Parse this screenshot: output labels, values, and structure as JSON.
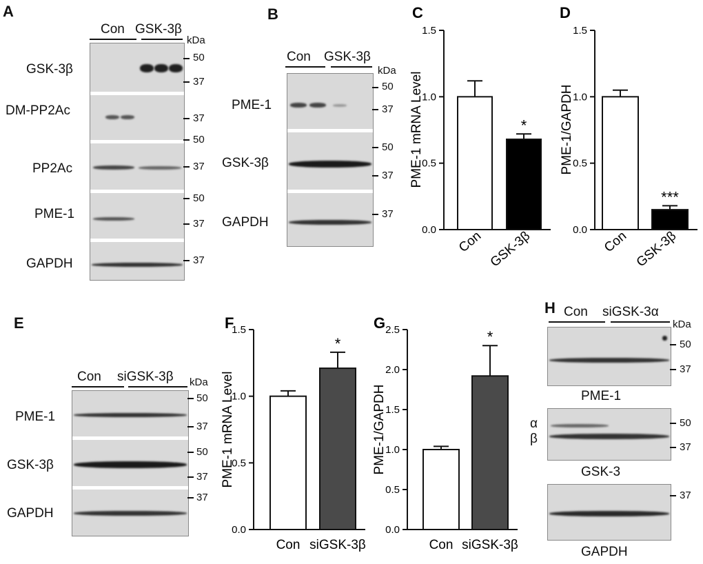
{
  "panels": {
    "A": {
      "letter": "A",
      "groups": [
        "Con",
        "GSK-3β"
      ],
      "unit": "kDa",
      "rows": [
        "GSK-3β",
        "DM-PP2Ac",
        "PP2Ac",
        "PME-1",
        "GAPDH"
      ],
      "markers": [
        "50",
        "37",
        "37",
        "50",
        "37",
        "50",
        "37",
        "37"
      ]
    },
    "B": {
      "letter": "B",
      "groups": [
        "Con",
        "GSK-3β"
      ],
      "unit": "kDa",
      "rows": [
        "PME-1",
        "GSK-3β",
        "GAPDH"
      ],
      "markers": [
        "50",
        "37",
        "50",
        "37",
        "37"
      ]
    },
    "E": {
      "letter": "E",
      "groups": [
        "Con",
        "siGSK-3β"
      ],
      "unit": "kDa",
      "rows": [
        "PME-1",
        "GSK-3β",
        "GAPDH"
      ],
      "markers": [
        "50",
        "37",
        "50",
        "37",
        "37"
      ]
    },
    "H": {
      "letter": "H",
      "groups": [
        "Con",
        "siGSK-3α"
      ],
      "unit": "kDa",
      "rows": [
        "PME-1",
        "GSK-3",
        "GAPDH"
      ],
      "isoforms": [
        "α",
        "β"
      ],
      "markers": [
        "50",
        "37",
        "50",
        "37",
        "37"
      ]
    }
  },
  "chart_data": [
    {
      "id": "C",
      "letter": "C",
      "type": "bar",
      "categories": [
        "Con",
        "GSK-3β"
      ],
      "values": [
        1.0,
        0.68
      ],
      "errors": [
        0.12,
        0.04
      ],
      "colors": [
        "#ffffff",
        "#000000"
      ],
      "ylabel": "PME-1 mRNA Level",
      "ylim": [
        0,
        1.5
      ],
      "ticks": [
        "0.0",
        "0.5",
        "1.0",
        "1.5"
      ],
      "annotations": [
        "",
        "*"
      ]
    },
    {
      "id": "D",
      "letter": "D",
      "type": "bar",
      "categories": [
        "Con",
        "GSK-3β"
      ],
      "values": [
        1.0,
        0.15
      ],
      "errors": [
        0.05,
        0.03
      ],
      "colors": [
        "#ffffff",
        "#000000"
      ],
      "ylabel": "PME-1/GAPDH",
      "ylim": [
        0,
        1.5
      ],
      "ticks": [
        "0.0",
        "0.5",
        "1.0",
        "1.5"
      ],
      "annotations": [
        "",
        "***"
      ]
    },
    {
      "id": "F",
      "letter": "F",
      "type": "bar",
      "categories": [
        "Con",
        "siGSK-3β"
      ],
      "values": [
        1.0,
        1.21
      ],
      "errors": [
        0.04,
        0.12
      ],
      "colors": [
        "#ffffff",
        "#4a4a4a"
      ],
      "ylabel": "PME-1 mRNA Level",
      "ylim": [
        0,
        1.5
      ],
      "ticks": [
        "0.0",
        "0.5",
        "1.0",
        "1.5"
      ],
      "annotations": [
        "",
        "*"
      ]
    },
    {
      "id": "G",
      "letter": "G",
      "type": "bar",
      "categories": [
        "Con",
        "siGSK-3β"
      ],
      "values": [
        1.0,
        1.92
      ],
      "errors": [
        0.04,
        0.38
      ],
      "colors": [
        "#ffffff",
        "#4a4a4a"
      ],
      "ylabel": "PME-1/GAPDH",
      "ylim": [
        0,
        2.5
      ],
      "ticks": [
        "0.0",
        "0.5",
        "1.0",
        "1.5",
        "2.0",
        "2.5"
      ],
      "annotations": [
        "",
        "*"
      ]
    }
  ]
}
